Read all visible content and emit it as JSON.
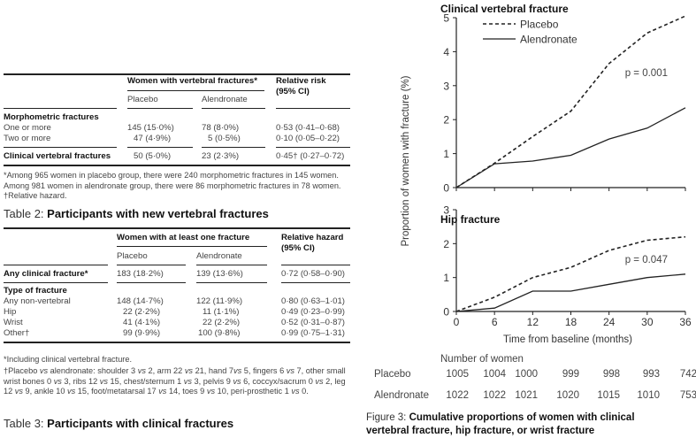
{
  "table2": {
    "header_group": "Women with vertebral fractures*",
    "col_placebo": "Placebo",
    "col_alendronate": "Alendronate",
    "col_rr_line1": "Relative risk",
    "col_rr_line2": "(95% CI)",
    "section_morph": "Morphometric fractures",
    "rows": [
      {
        "label": "One or more",
        "placebo": "145 (15·0%)",
        "alendronate": "78 (8·0%)",
        "rr": "0·53 (0·41–0·68)"
      },
      {
        "label": "Two or more",
        "placebo": "47 (4·9%)",
        "alendronate": "5 (0·5%)",
        "rr": "0·10 (0·05–0·22)"
      }
    ],
    "clinical": {
      "label": "Clinical vertebral fractures",
      "placebo": "50 (5·0%)",
      "alendronate": "23 (2·3%)",
      "rr": "0·45† (0·27–0·72)"
    },
    "footnote": "*Among 965 women in placebo group, there were 240 morphometric fractures in 145 women. Among 981 women in alendronate group, there were 86 morphometric fractures in 78 women. †Relative hazard.",
    "caption_prefix": "Table 2: ",
    "caption_title": "Participants with new vertebral fractures"
  },
  "table3": {
    "header_group": "Women with at least one fracture",
    "col_placebo": "Placebo",
    "col_alendronate": "Alendronate",
    "col_rh_line1": "Relative hazard",
    "col_rh_line2": "(95% CI)",
    "any": {
      "label": "Any clinical fracture*",
      "placebo": "183 (18·2%)",
      "alendronate": "139 (13·6%)",
      "rh": "0·72 (0·58–0·90)"
    },
    "section_type": "Type of fracture",
    "rows": [
      {
        "label": "Any non-vertebral",
        "placebo": "148 (14·7%)",
        "alendronate": "122 (11·9%)",
        "rh": "0·80 (0·63–1·01)"
      },
      {
        "label": "Hip",
        "placebo": "22 (2·2%)",
        "alendronate": "11 (1·1%)",
        "rh": "0·49 (0·23–0·99)"
      },
      {
        "label": "Wrist",
        "placebo": "41 (4·1%)",
        "alendronate": "22 (2·2%)",
        "rh": "0·52 (0·31–0·87)"
      },
      {
        "label": "Other†",
        "placebo": "99 (9·9%)",
        "alendronate": "100 (9·8%)",
        "rh": "0·99 (0·75–1·31)"
      }
    ],
    "footnote1": "*Including clinical vertebral fracture.",
    "footnote2": "†Placebo vs alendronate: shoulder 3 vs 2, arm  22 vs 21, hand 7vs 5, fingers 6 vs 7, other small wrist bones 0 vs 3, ribs 12 vs 15, chest/sternum 1 vs 3, pelvis 9 vs 6, coccyx/sacrum 0 vs 2, leg 12 vs 9, ankle 10 vs 15, foot/metatarsal 17 vs 14, toes 9 vs 10, peri-prosthetic 1 vs 0.",
    "caption_prefix": "Table 3: ",
    "caption_title": "Participants with clinical fractures"
  },
  "figure3": {
    "ylabel": "Proportion of women with fracture (%)",
    "xlabel": "Time from baseline (months)",
    "number_header": "Number of women",
    "numbers": {
      "placebo_label": "Placebo",
      "alendronate_label": "Alendronate",
      "placebo": [
        "1005",
        "1004",
        "1000",
        "999",
        "998",
        "993",
        "742"
      ],
      "alendronate": [
        "1022",
        "1022",
        "1021",
        "1020",
        "1015",
        "1010",
        "753"
      ]
    },
    "caption_prefix": "Figure 3: ",
    "caption_line1": "Cumulative proportions of women with clinical",
    "caption_line2": "vertebral fracture, hip fracture, or wrist fracture"
  },
  "chart_data": [
    {
      "type": "line",
      "title": "Clinical vertebral fracture",
      "xlabel": "Time from baseline (months)",
      "ylabel": "Proportion of women with fracture (%)",
      "x": [
        0,
        6,
        12,
        18,
        24,
        30,
        36
      ],
      "xlim": [
        0,
        36
      ],
      "ylim": [
        0,
        5
      ],
      "yticks": [
        "0",
        "1",
        "2",
        "3",
        "4",
        "5"
      ],
      "legend": [
        "Placebo",
        "Alendronate"
      ],
      "legend_position": "top-left",
      "annotation": "p = 0.001",
      "series": [
        {
          "name": "Placebo",
          "style": "dashed",
          "values": [
            0,
            0.72,
            1.5,
            2.25,
            3.65,
            4.55,
            5.05
          ]
        },
        {
          "name": "Alendronate",
          "style": "solid",
          "values": [
            0,
            0.7,
            0.78,
            0.95,
            1.43,
            1.75,
            2.35
          ]
        }
      ]
    },
    {
      "type": "line",
      "title": "Hip fracture",
      "xlabel": "Time from baseline (months)",
      "ylabel": "Proportion of women with fracture (%)",
      "x": [
        0,
        6,
        12,
        18,
        24,
        30,
        36
      ],
      "xlim": [
        0,
        36
      ],
      "ylim": [
        0,
        3
      ],
      "yticks": [
        "0",
        "1",
        "2",
        "3"
      ],
      "xticks": [
        "0",
        "6",
        "12",
        "18",
        "24",
        "30",
        "36"
      ],
      "annotation": "p = 0.047",
      "series": [
        {
          "name": "Placebo",
          "style": "dashed",
          "values": [
            0,
            0.42,
            1.0,
            1.3,
            1.8,
            2.1,
            2.2
          ]
        },
        {
          "name": "Alendronate",
          "style": "solid",
          "values": [
            0,
            0.1,
            0.6,
            0.6,
            0.8,
            1.0,
            1.1
          ]
        }
      ]
    }
  ]
}
